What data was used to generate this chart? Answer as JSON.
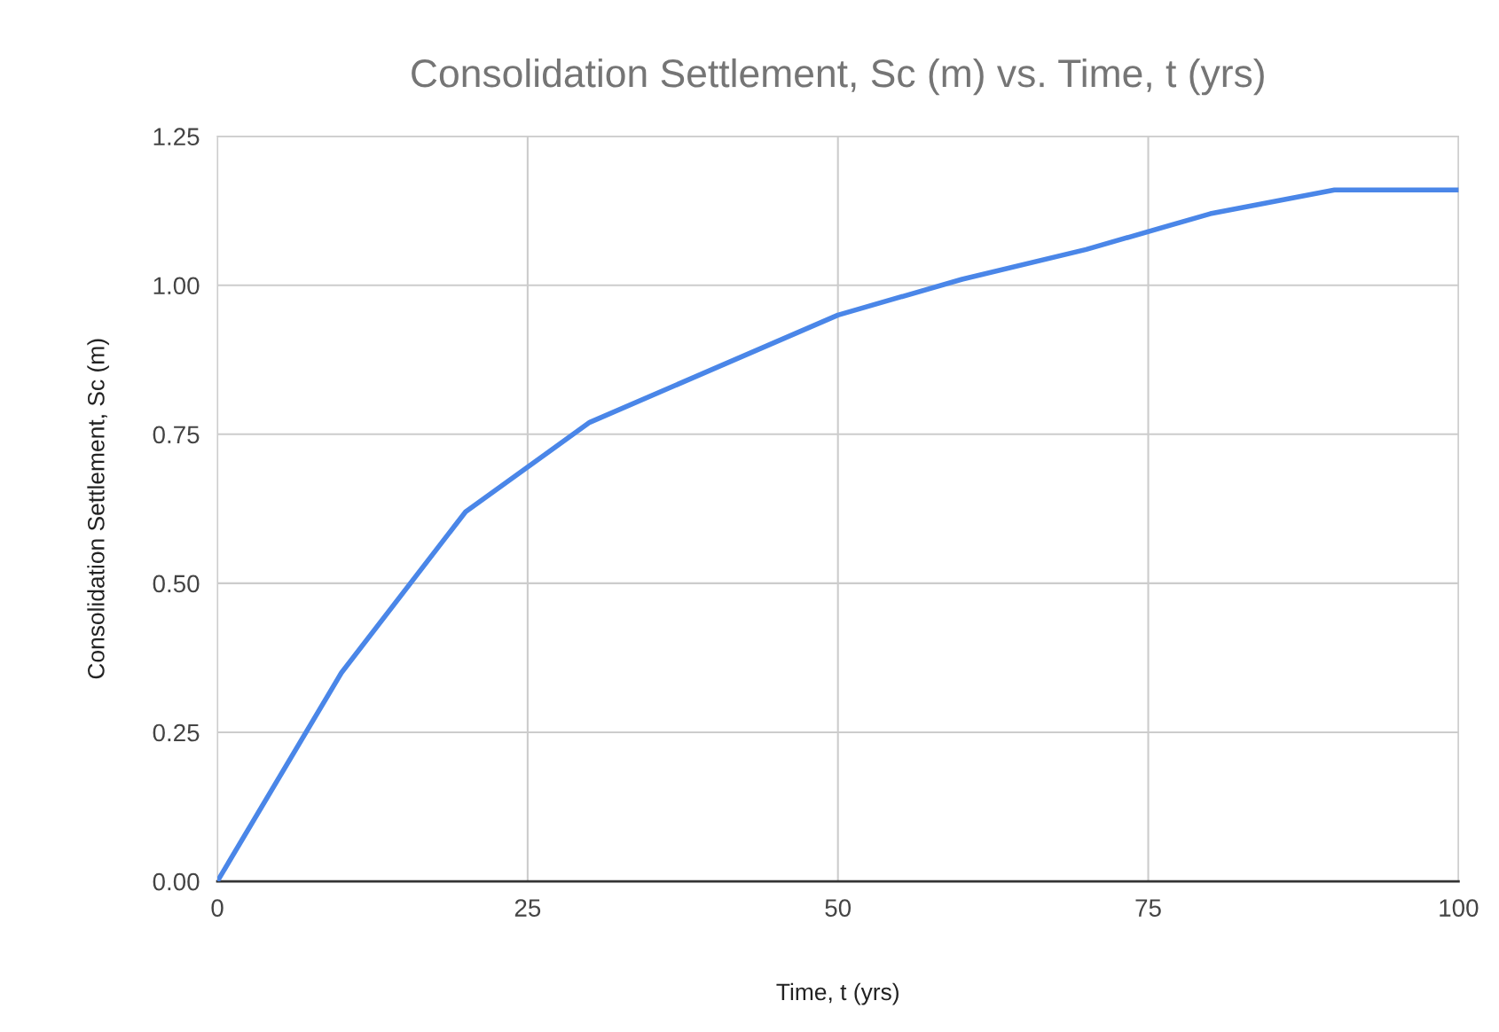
{
  "chart_data": {
    "type": "line",
    "title": "Consolidation Settlement, Sc (m) vs. Time, t (yrs)",
    "xlabel": "Time, t (yrs)",
    "ylabel": "Consolidation Settlement, Sc (m)",
    "x": [
      0,
      10,
      20,
      30,
      40,
      50,
      60,
      70,
      80,
      90,
      100
    ],
    "series": [
      {
        "color": "#4a86e8",
        "values": [
          0,
          0.35,
          0.62,
          0.77,
          0.86,
          0.95,
          1.01,
          1.06,
          1.12,
          1.16,
          1.16
        ]
      }
    ],
    "xlim": [
      0,
      100
    ],
    "xticks": [
      0,
      25,
      50,
      75,
      100
    ],
    "ylim": [
      0,
      1.25
    ],
    "yticks": [
      {
        "value": 0,
        "label": "0.00"
      },
      {
        "value": 0.25,
        "label": "0.25"
      },
      {
        "value": 0.5,
        "label": "0.50"
      },
      {
        "value": 0.75,
        "label": "0.75"
      },
      {
        "value": 1,
        "label": "1.00"
      },
      {
        "value": 1.25,
        "label": "1.25"
      }
    ],
    "grid": true,
    "marker": "none",
    "line_style": "solid"
  }
}
